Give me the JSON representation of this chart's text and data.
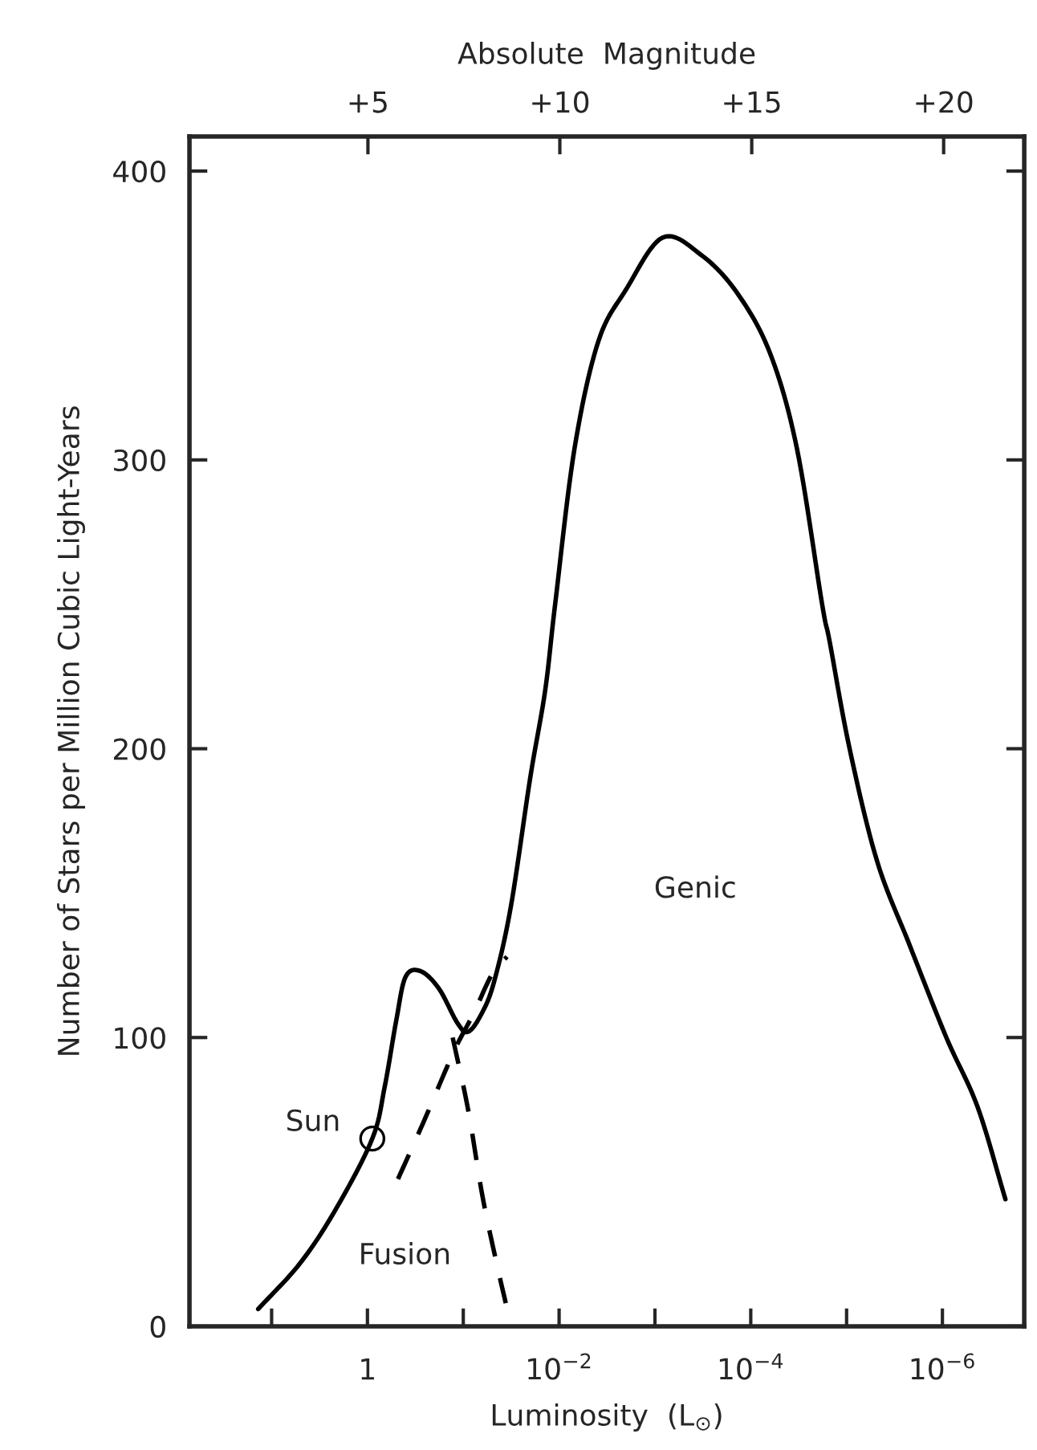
{
  "chart_data": {
    "type": "line",
    "xlabel": "Luminosity  (L$_{⊙}$)",
    "ylabel": "Number of Stars per Million Cubic Light-Years",
    "x2label": "Absolute  Magnitude",
    "log": "x",
    "xlim": [
      72,
      1.4e-07
    ],
    "xticks": [
      {
        "value": 10,
        "label": null
      },
      {
        "value": 1,
        "label": "1"
      },
      {
        "value": 0.1,
        "label": null
      },
      {
        "value": 0.01,
        "label": "10$^{−2}$"
      },
      {
        "value": 0.001,
        "label": null
      },
      {
        "value": 0.0001,
        "label": "10$^{−4}$"
      },
      {
        "value": 1e-05,
        "label": null
      },
      {
        "value": 1e-06,
        "label": "10$^{−6}$"
      }
    ],
    "x2lim": [
      0.35,
      22.1
    ],
    "x2ticks": [
      {
        "value": 5,
        "label": "+5"
      },
      {
        "value": 10,
        "label": "+10"
      },
      {
        "value": 15,
        "label": "+15"
      },
      {
        "value": 20,
        "label": "+20"
      }
    ],
    "ylim": [
      0,
      412
    ],
    "yticks": [
      0,
      100,
      200,
      300,
      400
    ],
    "grid": false,
    "legend": false,
    "series": [
      {
        "line_style": "solid",
        "color": "#000000",
        "x": [
          13.8,
          5.0,
          2.1,
          0.89,
          0.66,
          0.5,
          0.4,
          0.28,
          0.18,
          0.115,
          0.089,
          0.065,
          0.048,
          0.032,
          0.02,
          0.014,
          0.011,
          0.0069,
          0.0039,
          0.002,
          0.00083,
          0.00033,
          0.00014,
          6.3e-05,
          3.3e-05,
          1.8e-05,
          1.5e-05,
          9.3e-06,
          4.8e-06,
          2.2e-06,
          9.1e-07,
          4.3e-07,
          2.2e-07
        ],
        "values": [
          6,
          22,
          41,
          65,
          83,
          106,
          121,
          123,
          117,
          105,
          102,
          108,
          119,
          145,
          190,
          220,
          250,
          304,
          341,
          359,
          377,
          371,
          358,
          337,
          304,
          250,
          237,
          200,
          161,
          132,
          100,
          76,
          44
        ]
      },
      {
        "line_style": "dashed",
        "color": "#000000",
        "x": [
          0.48,
          0.25,
          0.126,
          0.079,
          0.05,
          0.035
        ],
        "values": [
          51,
          72,
          95,
          108,
          122,
          128
        ]
      },
      {
        "line_style": "dashed",
        "color": "#000000",
        "x": [
          0.129,
          0.089,
          0.063,
          0.045,
          0.036
        ],
        "values": [
          100,
          75,
          45,
          22,
          8
        ]
      },
      {
        "type": "scatter",
        "marker": "circle",
        "color": "#000000",
        "x": [
          0.89
        ],
        "values": [
          65
        ]
      }
    ],
    "annotations": [
      "Sun",
      "Fusion",
      "Genic"
    ]
  }
}
